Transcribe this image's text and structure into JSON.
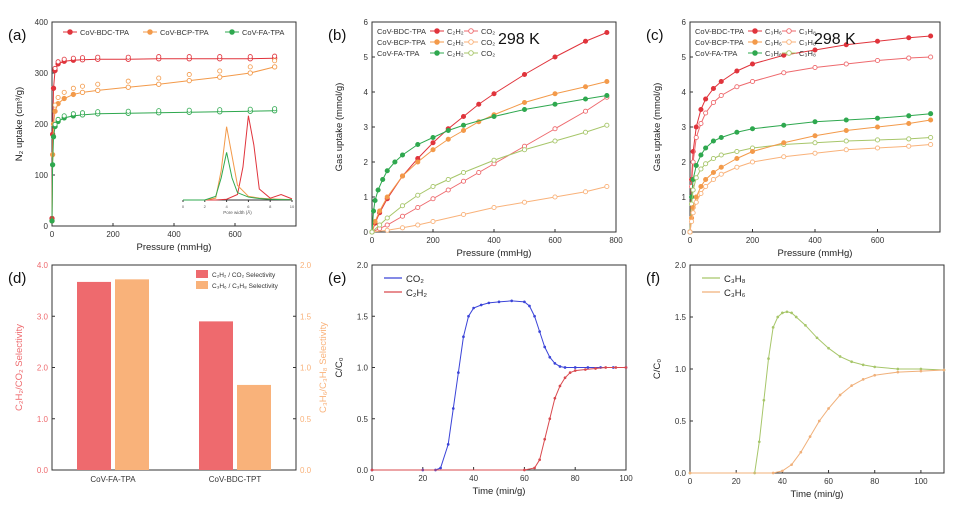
{
  "colors": {
    "red": "#e0343c",
    "orange": "#f39a4a",
    "green": "#2fa84f",
    "salmon": "#ee6a6e",
    "peach": "#f9b27a",
    "blue": "#3b44d8",
    "brickred": "#d9494e",
    "olive": "#a7c66a",
    "tan": "#f0b07a"
  },
  "chart_data": [
    {
      "id": "a",
      "type": "scatter",
      "panel_label": "(a)",
      "xlabel": "Pressure (mmHg)",
      "ylabel": "N₂ uptake (cm³/g)",
      "xlim": [
        0,
        800
      ],
      "ylim": [
        0,
        400
      ],
      "xticks": [
        0,
        200,
        400,
        600
      ],
      "yticks": [
        0,
        100,
        200,
        300,
        400
      ],
      "legend": [
        "CoV-BDC-TPA",
        "CoV-BCP-TPA",
        "CoV-FA-TPA"
      ],
      "series": [
        {
          "name": "CoV-BDC-TPA",
          "color": "red",
          "x": [
            0,
            2,
            5,
            10,
            20,
            40,
            70,
            100,
            150,
            250,
            350,
            450,
            550,
            650,
            730
          ],
          "y": [
            15,
            180,
            270,
            305,
            318,
            323,
            325,
            326,
            327,
            327,
            328,
            328,
            328,
            328,
            329
          ]
        },
        {
          "name": "CoV-BCP-TPA",
          "color": "orange",
          "x": [
            0,
            2,
            5,
            10,
            20,
            40,
            70,
            100,
            150,
            250,
            350,
            450,
            550,
            650,
            730
          ],
          "y": [
            10,
            140,
            200,
            225,
            240,
            250,
            258,
            262,
            266,
            272,
            278,
            285,
            292,
            300,
            312
          ]
        },
        {
          "name": "CoV-FA-TPA",
          "color": "green",
          "x": [
            0,
            2,
            5,
            10,
            20,
            40,
            70,
            100,
            150,
            250,
            350,
            450,
            550,
            650,
            730
          ],
          "y": [
            10,
            120,
            175,
            195,
            205,
            212,
            216,
            218,
            220,
            221,
            222,
            223,
            224,
            225,
            226
          ]
        }
      ],
      "inset": {
        "xlabel": "Pore width (Å)",
        "xlim": [
          0,
          10
        ],
        "xticks": [
          0,
          2,
          4,
          6,
          8,
          10
        ],
        "series": [
          {
            "name": "CoV-BDC-TPA",
            "color": "red",
            "x": [
              0,
              1,
              2,
              3,
              4,
              5,
              5.5,
              6,
              6.5,
              7,
              8,
              9,
              10
            ],
            "y": [
              0,
              0,
              0,
              0,
              2,
              15,
              90,
              230,
              150,
              30,
              5,
              15,
              3
            ]
          },
          {
            "name": "CoV-BCP-TPA",
            "color": "orange",
            "x": [
              0,
              1,
              2,
              3,
              3.5,
              4,
              4.5,
              5,
              6,
              7,
              8,
              9,
              10
            ],
            "y": [
              0,
              0,
              0,
              5,
              80,
              200,
              120,
              40,
              10,
              5,
              3,
              2,
              1
            ]
          },
          {
            "name": "CoV-FA-TPA",
            "color": "green",
            "x": [
              0,
              1,
              2,
              3,
              3.5,
              4,
              4.5,
              5,
              6,
              7,
              8,
              9,
              10
            ],
            "y": [
              0,
              0,
              0,
              10,
              60,
              130,
              60,
              20,
              8,
              4,
              2,
              1,
              1
            ]
          }
        ]
      }
    },
    {
      "id": "b",
      "type": "line",
      "panel_label": "(b)",
      "annotation": "298 K",
      "xlabel": "Pressure (mmHg)",
      "ylabel": "Gas uptake (mmol/g)",
      "xlim": [
        0,
        800
      ],
      "ylim": [
        0,
        6
      ],
      "xticks": [
        0,
        200,
        400,
        600,
        800
      ],
      "yticks": [
        0,
        1,
        2,
        3,
        4,
        5,
        6
      ],
      "legend_rows": [
        {
          "material": "CoV-BDC-TPA",
          "a": "C₂H₂",
          "b": "CO₂"
        },
        {
          "material": "CoV-BCP-TPA",
          "a": "C₂H₂",
          "b": "CO₂"
        },
        {
          "material": "CoV-FA-TPA",
          "a": "C₂H₂",
          "b": "CO₂"
        }
      ],
      "series": [
        {
          "name": "CoV-BDC-TPA C₂H₂",
          "color": "red",
          "filled": true,
          "x": [
            0,
            10,
            25,
            50,
            100,
            150,
            200,
            250,
            300,
            350,
            400,
            500,
            600,
            700,
            770
          ],
          "y": [
            0,
            0.25,
            0.55,
            0.95,
            1.6,
            2.1,
            2.55,
            2.95,
            3.3,
            3.65,
            3.95,
            4.5,
            5.0,
            5.45,
            5.7
          ]
        },
        {
          "name": "CoV-BDC-TPA CO₂",
          "color": "salmon",
          "filled": false,
          "x": [
            0,
            25,
            50,
            100,
            150,
            200,
            250,
            300,
            350,
            400,
            500,
            600,
            700,
            770
          ],
          "y": [
            0,
            0.1,
            0.2,
            0.45,
            0.7,
            0.95,
            1.2,
            1.45,
            1.7,
            1.95,
            2.45,
            2.95,
            3.45,
            3.85
          ]
        },
        {
          "name": "CoV-BCP-TPA C₂H₂",
          "color": "orange",
          "filled": true,
          "x": [
            0,
            10,
            25,
            50,
            100,
            150,
            200,
            250,
            300,
            350,
            400,
            500,
            600,
            700,
            770
          ],
          "y": [
            0,
            0.3,
            0.6,
            1.0,
            1.6,
            2.0,
            2.35,
            2.65,
            2.9,
            3.15,
            3.35,
            3.7,
            3.95,
            4.15,
            4.3
          ]
        },
        {
          "name": "CoV-BCP-TPA CO₂",
          "color": "peach",
          "filled": false,
          "x": [
            0,
            50,
            100,
            150,
            200,
            300,
            400,
            500,
            600,
            700,
            770
          ],
          "y": [
            0,
            0.05,
            0.12,
            0.2,
            0.3,
            0.5,
            0.7,
            0.85,
            1.0,
            1.15,
            1.3
          ]
        },
        {
          "name": "CoV-FA-TPA C₂H₂",
          "color": "green",
          "filled": true,
          "x": [
            0,
            5,
            10,
            20,
            35,
            50,
            75,
            100,
            150,
            200,
            250,
            300,
            400,
            500,
            600,
            700,
            770
          ],
          "y": [
            0,
            0.6,
            0.9,
            1.2,
            1.5,
            1.75,
            2.0,
            2.2,
            2.5,
            2.7,
            2.9,
            3.05,
            3.3,
            3.5,
            3.65,
            3.8,
            3.9
          ]
        },
        {
          "name": "CoV-FA-TPA CO₂",
          "color": "olive",
          "filled": false,
          "x": [
            0,
            25,
            50,
            100,
            150,
            200,
            250,
            300,
            400,
            500,
            600,
            700,
            770
          ],
          "y": [
            0,
            0.2,
            0.4,
            0.75,
            1.05,
            1.3,
            1.5,
            1.7,
            2.05,
            2.35,
            2.6,
            2.85,
            3.05
          ]
        }
      ]
    },
    {
      "id": "c",
      "type": "line",
      "panel_label": "(c)",
      "annotation": "298 K",
      "xlabel": "Pressure (mmHg)",
      "ylabel": "Gas uptake (mmol/g)",
      "xlim": [
        0,
        800
      ],
      "ylim": [
        0,
        6
      ],
      "xticks": [
        0,
        200,
        400,
        600
      ],
      "yticks": [
        0,
        1,
        2,
        3,
        4,
        5,
        6
      ],
      "legend_rows": [
        {
          "material": "CoV-BDC-TPA",
          "a": "C₃H₆",
          "b": "C₃H₈"
        },
        {
          "material": "CoV-BCP-TPA",
          "a": "C₃H₆",
          "b": "C₃H₈"
        },
        {
          "material": "CoV-FA-TPA",
          "a": "C₃H₆",
          "b": "C₃H₈"
        }
      ],
      "series": [
        {
          "name": "CoV-BDC-TPA C₃H₆",
          "color": "red",
          "filled": true,
          "x": [
            0,
            5,
            10,
            20,
            35,
            50,
            75,
            100,
            150,
            200,
            300,
            400,
            500,
            600,
            700,
            770
          ],
          "y": [
            0,
            1.5,
            2.3,
            3.0,
            3.5,
            3.8,
            4.1,
            4.3,
            4.6,
            4.8,
            5.05,
            5.2,
            5.35,
            5.45,
            5.55,
            5.6
          ]
        },
        {
          "name": "CoV-BDC-TPA C₃H₈",
          "color": "salmon",
          "filled": false,
          "x": [
            0,
            5,
            10,
            20,
            35,
            50,
            75,
            100,
            150,
            200,
            300,
            400,
            500,
            600,
            700,
            770
          ],
          "y": [
            0,
            1.3,
            2.0,
            2.7,
            3.1,
            3.4,
            3.7,
            3.9,
            4.15,
            4.3,
            4.55,
            4.7,
            4.8,
            4.9,
            4.97,
            5.0
          ]
        },
        {
          "name": "CoV-FA-TPA C₃H₆",
          "color": "green",
          "filled": true,
          "x": [
            0,
            5,
            10,
            20,
            35,
            50,
            75,
            100,
            150,
            200,
            300,
            400,
            500,
            600,
            700,
            770
          ],
          "y": [
            0,
            1.0,
            1.5,
            1.9,
            2.2,
            2.4,
            2.6,
            2.7,
            2.85,
            2.95,
            3.05,
            3.15,
            3.2,
            3.25,
            3.32,
            3.38
          ]
        },
        {
          "name": "CoV-FA-TPA C₃H₈",
          "color": "olive",
          "filled": false,
          "x": [
            0,
            5,
            10,
            20,
            35,
            50,
            75,
            100,
            150,
            200,
            300,
            400,
            500,
            600,
            700,
            770
          ],
          "y": [
            0,
            0.8,
            1.2,
            1.55,
            1.8,
            1.95,
            2.1,
            2.2,
            2.3,
            2.4,
            2.5,
            2.55,
            2.6,
            2.63,
            2.66,
            2.7
          ]
        },
        {
          "name": "CoV-BCP-TPA C₃H₆",
          "color": "orange",
          "filled": true,
          "x": [
            0,
            5,
            10,
            20,
            35,
            50,
            75,
            100,
            150,
            200,
            300,
            400,
            500,
            600,
            700,
            770
          ],
          "y": [
            0,
            0.4,
            0.7,
            1.0,
            1.3,
            1.5,
            1.7,
            1.85,
            2.1,
            2.3,
            2.55,
            2.75,
            2.9,
            3.0,
            3.1,
            3.2
          ]
        },
        {
          "name": "CoV-BCP-TPA C₃H₈",
          "color": "peach",
          "filled": false,
          "x": [
            0,
            5,
            10,
            20,
            35,
            50,
            75,
            100,
            150,
            200,
            300,
            400,
            500,
            600,
            700,
            770
          ],
          "y": [
            0,
            0.3,
            0.55,
            0.85,
            1.1,
            1.3,
            1.5,
            1.65,
            1.85,
            2.0,
            2.15,
            2.25,
            2.35,
            2.4,
            2.45,
            2.5
          ]
        }
      ]
    },
    {
      "id": "d",
      "type": "bar",
      "panel_label": "(d)",
      "categories": [
        "CoV-FA-TPA",
        "CoV-BDC-TPT"
      ],
      "ylabel": "C₂H₂/CO₂ Selectivity",
      "y2label": "C₃H₆/C₃H₈ Selectivity",
      "ylim": [
        0,
        4
      ],
      "y2lim": [
        0,
        2
      ],
      "yticks": [
        "0.0",
        "1.0",
        "2.0",
        "3.0",
        "4.0"
      ],
      "y2ticks": [
        "0.0",
        "0.5",
        "1.0",
        "1.5",
        "2.0"
      ],
      "legend": [
        "C₂H₂ / CO₂ Selectivity",
        "C₃H₆ / C₃H₈ Selectivity"
      ],
      "series": [
        {
          "name": "C₂H₂ / CO₂ Selectivity",
          "color": "salmon",
          "axis": "left",
          "values": [
            3.67,
            2.9
          ]
        },
        {
          "name": "C₃H₆ / C₃H₈ Selectivity",
          "color": "peach",
          "axis": "right",
          "values": [
            1.86,
            0.83
          ]
        }
      ]
    },
    {
      "id": "e",
      "type": "line",
      "panel_label": "(e)",
      "xlabel": "Time (min/g)",
      "ylabel": "C/C₀",
      "xlim": [
        0,
        100
      ],
      "ylim": [
        0,
        2.0
      ],
      "xticks": [
        0,
        20,
        40,
        60,
        80,
        100
      ],
      "yticks": [
        "0.0",
        "0.5",
        "1.0",
        "1.5",
        "2.0"
      ],
      "legend": [
        "CO₂",
        "C₂H₂"
      ],
      "series": [
        {
          "name": "CO₂",
          "color": "blue",
          "x": [
            0,
            20,
            25,
            27,
            30,
            32,
            34,
            36,
            38,
            40,
            43,
            46,
            50,
            55,
            60,
            62,
            64,
            66,
            68,
            70,
            72,
            74,
            76,
            80,
            85,
            90,
            95,
            100
          ],
          "y": [
            0,
            0,
            0,
            0.02,
            0.25,
            0.6,
            0.95,
            1.3,
            1.5,
            1.58,
            1.61,
            1.63,
            1.64,
            1.65,
            1.64,
            1.6,
            1.5,
            1.35,
            1.2,
            1.1,
            1.04,
            1.01,
            1.0,
            1.0,
            1.0,
            1.0,
            1.0,
            1.0
          ]
        },
        {
          "name": "C₂H₂",
          "color": "brickred",
          "x": [
            0,
            60,
            64,
            66,
            68,
            70,
            72,
            74,
            76,
            78,
            80,
            84,
            88,
            92,
            96,
            100
          ],
          "y": [
            0,
            0,
            0.02,
            0.1,
            0.3,
            0.5,
            0.7,
            0.82,
            0.9,
            0.95,
            0.97,
            0.98,
            0.99,
            1.0,
            1.0,
            1.0
          ]
        }
      ]
    },
    {
      "id": "f",
      "type": "line",
      "panel_label": "(f)",
      "xlabel": "Time (min/g)",
      "ylabel": "C/C₀",
      "xlim": [
        0,
        110
      ],
      "ylim": [
        0,
        2.0
      ],
      "xticks": [
        0,
        20,
        40,
        60,
        80,
        100
      ],
      "yticks": [
        "0.0",
        "0.5",
        "1.0",
        "1.5",
        "2.0"
      ],
      "legend": [
        "C₃H₈",
        "C₃H₆"
      ],
      "series": [
        {
          "name": "C₃H₈",
          "color": "olive",
          "x": [
            0,
            28,
            30,
            32,
            34,
            36,
            38,
            40,
            42,
            44,
            46,
            50,
            55,
            60,
            65,
            70,
            75,
            80,
            90,
            100,
            110
          ],
          "y": [
            0,
            0,
            0.3,
            0.7,
            1.1,
            1.4,
            1.5,
            1.54,
            1.55,
            1.54,
            1.5,
            1.42,
            1.3,
            1.2,
            1.12,
            1.07,
            1.04,
            1.02,
            1.0,
            1.0,
            0.99
          ]
        },
        {
          "name": "C₃H₆",
          "color": "tan",
          "x": [
            0,
            36,
            40,
            44,
            48,
            52,
            56,
            60,
            65,
            70,
            75,
            80,
            90,
            100,
            110
          ],
          "y": [
            0,
            0,
            0.02,
            0.08,
            0.2,
            0.35,
            0.5,
            0.62,
            0.75,
            0.84,
            0.9,
            0.94,
            0.97,
            0.98,
            0.99
          ]
        }
      ]
    }
  ]
}
